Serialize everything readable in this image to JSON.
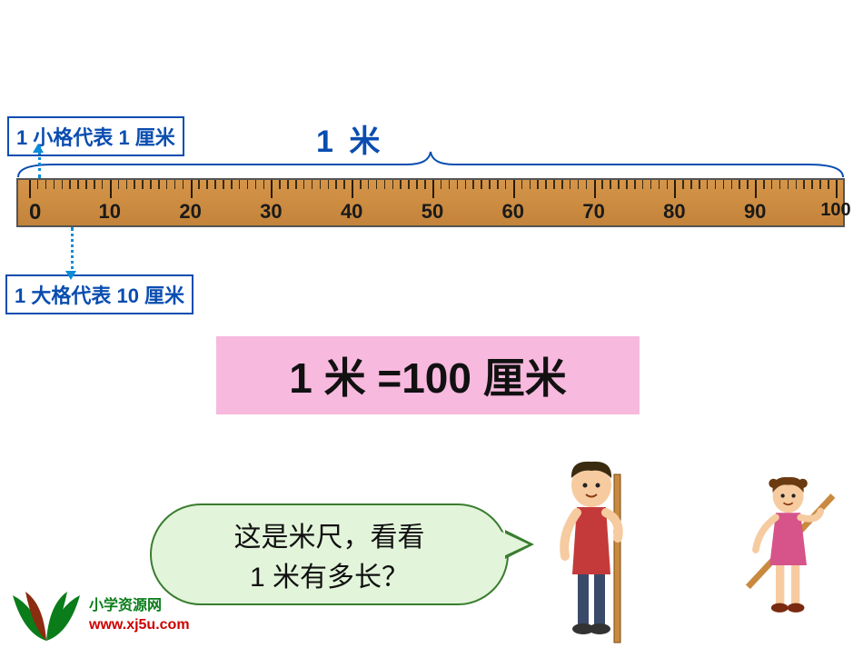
{
  "labels": {
    "small_tick": "1 小格代表 1 厘米",
    "big_tick": "1 大格代表 10 厘米",
    "meter_title": "1   米"
  },
  "ruler": {
    "start": 0,
    "end": 100,
    "major_step": 10,
    "minor_step": 1,
    "major_tick_labels": [
      "0",
      "10",
      "20",
      "30",
      "40",
      "50",
      "60",
      "70",
      "80",
      "90",
      "100"
    ],
    "background_color": "#c98a3f",
    "border_color": "#555555",
    "tick_color": "#2a1a05",
    "label_color": "#1a1a1a",
    "label_fontsize": 22
  },
  "equation": {
    "text": "1 米 =100 厘米",
    "background_color": "#f7b9de",
    "text_color": "#111111",
    "fontsize": 46
  },
  "speech": {
    "text": "这是米尺，看看\n1 米有多长？",
    "background_color": "#e2f4da",
    "border_color": "#3a7d2f",
    "text_color": "#111111",
    "fontsize": 30
  },
  "annotation": {
    "dotted_color": "#0a8cd8",
    "label_border_color": "#0a4db0",
    "label_text_color": "#0a4db0"
  },
  "brace": {
    "color": "#0a4db0",
    "stroke_width": 2
  },
  "logo": {
    "line1": "小学资源网",
    "line2": "www.xj5u.com",
    "leaf_colors": [
      "#0a7d1a",
      "#8b2b10",
      "#0a7d1a",
      "#0a7d1a"
    ]
  },
  "people": {
    "boy": {
      "hair_color": "#3a2a10",
      "shirt_color": "#c43a3a",
      "skin_color": "#f6cba0",
      "stick_color": "#c98a3f"
    },
    "girl": {
      "hair_color": "#6b3a10",
      "shirt_color": "#d6548a",
      "skin_color": "#f6cba0",
      "stick_color": "#c98a3f"
    }
  }
}
